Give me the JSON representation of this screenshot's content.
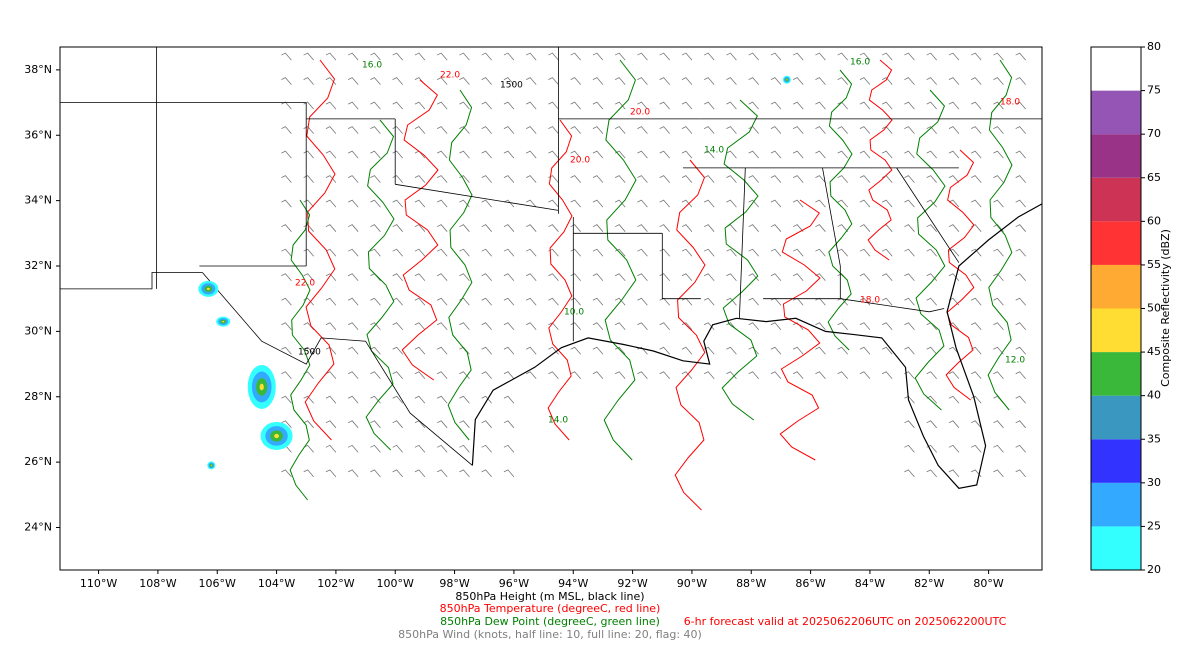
{
  "map": {
    "lon_ticks": [
      {
        "value": -110,
        "label": "110°W"
      },
      {
        "value": -108,
        "label": "108°W"
      },
      {
        "value": -106,
        "label": "106°W"
      },
      {
        "value": -104,
        "label": "104°W"
      },
      {
        "value": -102,
        "label": "102°W"
      },
      {
        "value": -100,
        "label": "100°W"
      },
      {
        "value": -98,
        "label": "98°W"
      },
      {
        "value": -96,
        "label": "96°W"
      },
      {
        "value": -94,
        "label": "94°W"
      },
      {
        "value": -92,
        "label": "92°W"
      },
      {
        "value": -90,
        "label": "90°W"
      },
      {
        "value": -88,
        "label": "88°W"
      },
      {
        "value": -86,
        "label": "86°W"
      },
      {
        "value": -84,
        "label": "84°W"
      },
      {
        "value": -82,
        "label": "82°W"
      },
      {
        "value": -80,
        "label": "80°W"
      }
    ],
    "lat_ticks": [
      {
        "value": 38,
        "label": "38°N"
      },
      {
        "value": 36,
        "label": "36°N"
      },
      {
        "value": 34,
        "label": "34°N"
      },
      {
        "value": 32,
        "label": "32°N"
      },
      {
        "value": 30,
        "label": "30°N"
      },
      {
        "value": 28,
        "label": "28°N"
      },
      {
        "value": 26,
        "label": "26°N"
      },
      {
        "value": 24,
        "label": "24°N"
      }
    ],
    "xlim": [
      -111.3,
      -78.2
    ],
    "ylim": [
      22.7,
      38.7
    ],
    "height_labels": [
      "1500",
      "1500"
    ],
    "temperature_labels": [
      "22.0",
      "20.0",
      "20.0",
      "18.0",
      "18.0",
      "22.0"
    ],
    "dew_point_labels": [
      "16.0",
      "14.0",
      "12.0",
      "10.0",
      "14.0",
      "16.0"
    ],
    "caption": {
      "height": "850hPa Height (m MSL, black line)",
      "temperature": "850hPa Temperature (degreeC, red line)",
      "dew_point": "850hPa Dew Point (degreeC, green line)",
      "wind": "850hPa Wind (knots, half line: 10, full line: 20, flag: 40)",
      "valid": "6-hr forecast valid at 2025062206UTC on 2025062200UTC"
    }
  },
  "colorbar": {
    "label": "Composite Reflectivity (dBZ)",
    "ylim": [
      20,
      80
    ],
    "ticks": [
      20,
      25,
      30,
      35,
      40,
      45,
      50,
      55,
      60,
      65,
      70,
      75,
      80
    ],
    "colors": [
      "#33ffff",
      "#33aaff",
      "#3333ff",
      "#3a98c0",
      "#3ab83a",
      "#ffdd33",
      "#ffaa33",
      "#ff3333",
      "#cc3355",
      "#993388",
      "#9455b5",
      "#ffffff"
    ]
  }
}
